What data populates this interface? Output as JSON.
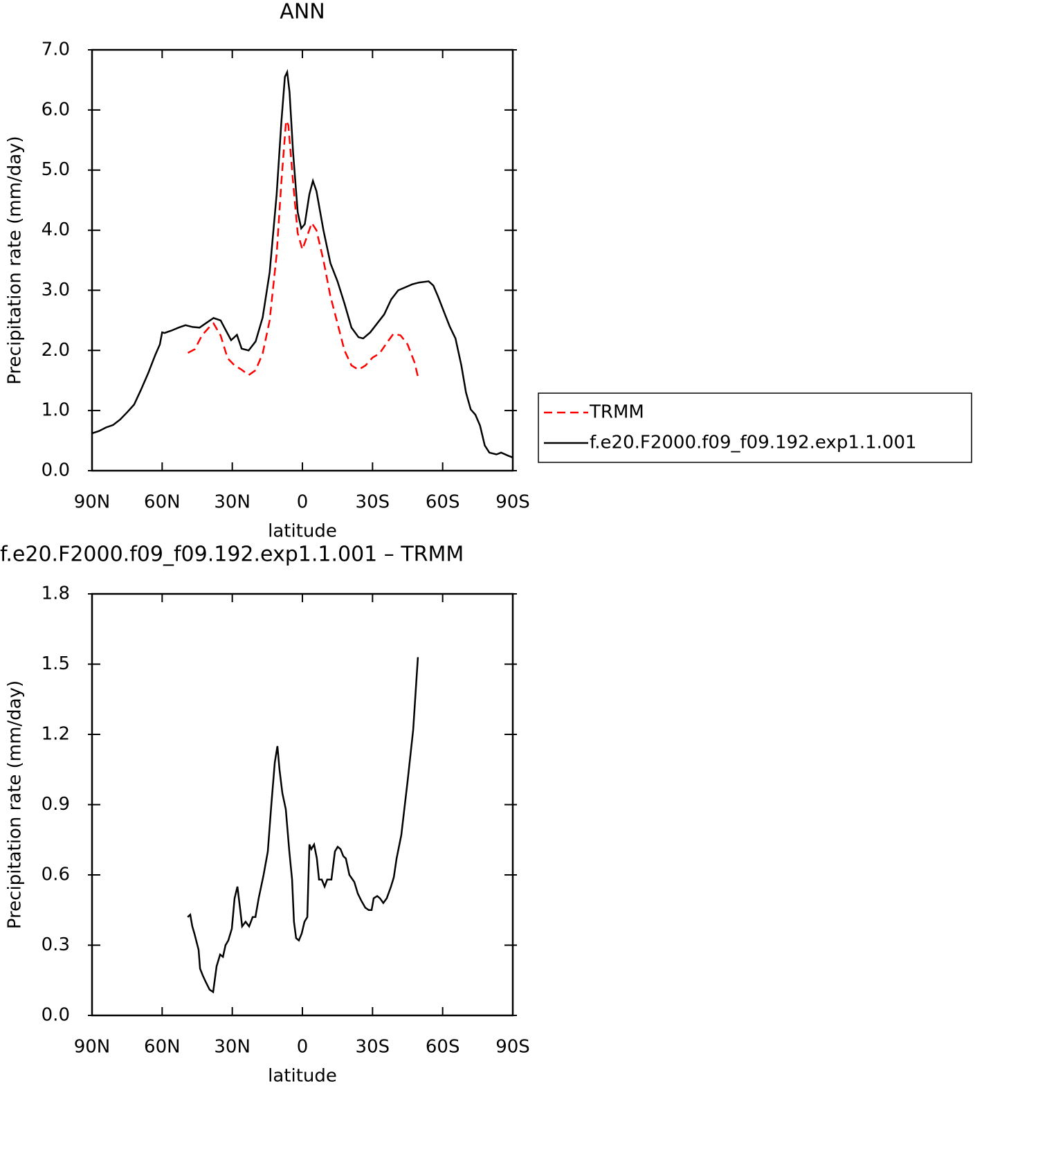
{
  "chart_data": [
    {
      "type": "line",
      "title": "ANN",
      "xlabel": "latitude",
      "ylabel": "Precipitation rate (mm/day)",
      "xlim": [
        90,
        -90
      ],
      "xticks": [
        {
          "value": 90,
          "label": "90N"
        },
        {
          "value": 60,
          "label": "60N"
        },
        {
          "value": 30,
          "label": "30N"
        },
        0,
        {
          "value": -30,
          "label": "30S"
        },
        {
          "value": -60,
          "label": "60S"
        },
        {
          "value": -90,
          "label": "90S"
        }
      ],
      "ylim": [
        0,
        7
      ],
      "yticks": [
        {
          "value": 0,
          "label": "0.0"
        },
        {
          "value": 1,
          "label": "1.0"
        },
        {
          "value": 2,
          "label": "2.0"
        },
        {
          "value": 3,
          "label": "3.0"
        },
        {
          "value": 4,
          "label": "4.0"
        },
        {
          "value": 5,
          "label": "5.0"
        },
        {
          "value": 6,
          "label": "6.0"
        },
        {
          "value": 7,
          "label": "7.0"
        }
      ],
      "series": [
        {
          "name": "TRMM",
          "color": "#ff0000",
          "dashed": true,
          "x": [
            49,
            46,
            43,
            40,
            38,
            35,
            32,
            29,
            26,
            23,
            20,
            17,
            14,
            11,
            9,
            7,
            6,
            4,
            2,
            0,
            -2,
            -4,
            -6,
            -9,
            -12,
            -15,
            -18,
            -21,
            -24,
            -27,
            -30,
            -33,
            -36,
            -39,
            -42,
            -45,
            -48,
            -49.5
          ],
          "values": [
            1.96,
            2.02,
            2.25,
            2.38,
            2.45,
            2.25,
            1.87,
            1.75,
            1.68,
            1.59,
            1.67,
            1.95,
            2.5,
            3.6,
            4.8,
            5.82,
            5.75,
            4.8,
            3.95,
            3.68,
            3.9,
            4.12,
            4.0,
            3.5,
            2.9,
            2.45,
            2.0,
            1.75,
            1.68,
            1.75,
            1.88,
            1.95,
            2.12,
            2.28,
            2.25,
            2.1,
            1.8,
            1.55
          ]
        },
        {
          "name": "f.e20.F2000.f09_f09.192.exp1.1.001",
          "color": "#000000",
          "dashed": false,
          "x": [
            90,
            87,
            84,
            81,
            78,
            75,
            72,
            69,
            66,
            63,
            61,
            60,
            59,
            56,
            53,
            50,
            47,
            44,
            41,
            38,
            35,
            32,
            30.5,
            28,
            26,
            23,
            20,
            17,
            14,
            11,
            9,
            7.5,
            6.5,
            5.5,
            4,
            2,
            0.5,
            -1,
            -3,
            -4.5,
            -6,
            -9,
            -12,
            -15,
            -18,
            -21,
            -24,
            -26,
            -29,
            -32,
            -35,
            -38,
            -41,
            -44,
            -47,
            -50,
            -54,
            -56,
            -58,
            -61,
            -63,
            -65.5,
            -68,
            -70,
            -72,
            -74,
            -76,
            -78,
            -80,
            -83,
            -85,
            -88,
            -90
          ],
          "values": [
            0.62,
            0.66,
            0.72,
            0.76,
            0.85,
            0.97,
            1.1,
            1.35,
            1.62,
            1.92,
            2.1,
            2.3,
            2.29,
            2.33,
            2.38,
            2.42,
            2.39,
            2.38,
            2.46,
            2.54,
            2.5,
            2.28,
            2.17,
            2.26,
            2.03,
            2.0,
            2.15,
            2.55,
            3.3,
            4.6,
            5.8,
            6.55,
            6.63,
            6.3,
            5.3,
            4.3,
            4.03,
            4.1,
            4.6,
            4.82,
            4.65,
            4.0,
            3.45,
            3.15,
            2.78,
            2.38,
            2.22,
            2.2,
            2.3,
            2.45,
            2.6,
            2.85,
            3.0,
            3.05,
            3.1,
            3.13,
            3.15,
            3.08,
            2.9,
            2.6,
            2.4,
            2.2,
            1.75,
            1.3,
            1.02,
            0.93,
            0.75,
            0.42,
            0.3,
            0.27,
            0.3,
            0.25,
            0.22
          ]
        }
      ]
    },
    {
      "type": "line",
      "title": "f.e20.F2000.f09_f09.192.exp1.1.001 – TRMM",
      "xlabel": "latitude",
      "ylabel": "Precipitation rate (mm/day)",
      "xlim": [
        90,
        -90
      ],
      "xticks": [
        {
          "value": 90,
          "label": "90N"
        },
        {
          "value": 60,
          "label": "60N"
        },
        {
          "value": 30,
          "label": "30N"
        },
        0,
        {
          "value": -30,
          "label": "30S"
        },
        {
          "value": -60,
          "label": "60S"
        },
        {
          "value": -90,
          "label": "90S"
        }
      ],
      "ylim": [
        0,
        1.8
      ],
      "yticks": [
        {
          "value": 0,
          "label": "0.0"
        },
        0.3,
        0.6,
        0.9,
        1.2,
        1.5,
        1.8
      ],
      "color": "#000000",
      "x": [
        49.1,
        48,
        47.1,
        46.2,
        44.4,
        43.8,
        42.6,
        41.2,
        39.7,
        38.2,
        36.7,
        35.2,
        34,
        32.9,
        31.7,
        30.2,
        29,
        27.8,
        26.6,
        25.8,
        24.3,
        22.8,
        21.3,
        20.1,
        18.7,
        16.6,
        14.8,
        13.3,
        11.8,
        10.7,
        9.8,
        8.6,
        7.1,
        5.6,
        4.4,
        3.6,
        2.7,
        1.5,
        0.3,
        -0.9,
        -2.1,
        -3,
        -3.8,
        -5,
        -6.2,
        -7.1,
        -8.3,
        -9.5,
        -10.6,
        -12.4,
        -13.9,
        -15.1,
        -16.3,
        -17.5,
        -18.6,
        -20.1,
        -22.2,
        -23.7,
        -25.2,
        -26.9,
        -28.4,
        -29.6,
        -30.5,
        -32,
        -33.2,
        -34.6,
        -36.1,
        -37.9,
        -39.1,
        -40.3,
        -42.3,
        -45,
        -47.4,
        -49.4
      ],
      "values": [
        0.42,
        0.43,
        0.38,
        0.35,
        0.28,
        0.2,
        0.17,
        0.14,
        0.11,
        0.1,
        0.21,
        0.26,
        0.25,
        0.3,
        0.32,
        0.37,
        0.5,
        0.55,
        0.45,
        0.38,
        0.4,
        0.38,
        0.42,
        0.42,
        0.5,
        0.6,
        0.7,
        0.9,
        1.08,
        1.15,
        1.05,
        0.95,
        0.88,
        0.7,
        0.58,
        0.4,
        0.33,
        0.32,
        0.35,
        0.4,
        0.42,
        0.73,
        0.71,
        0.73,
        0.67,
        0.58,
        0.58,
        0.55,
        0.58,
        0.58,
        0.7,
        0.72,
        0.71,
        0.68,
        0.67,
        0.6,
        0.57,
        0.52,
        0.49,
        0.46,
        0.45,
        0.45,
        0.5,
        0.51,
        0.5,
        0.48,
        0.5,
        0.55,
        0.59,
        0.67,
        0.77,
        1.0,
        1.22,
        1.53
      ]
    }
  ]
}
